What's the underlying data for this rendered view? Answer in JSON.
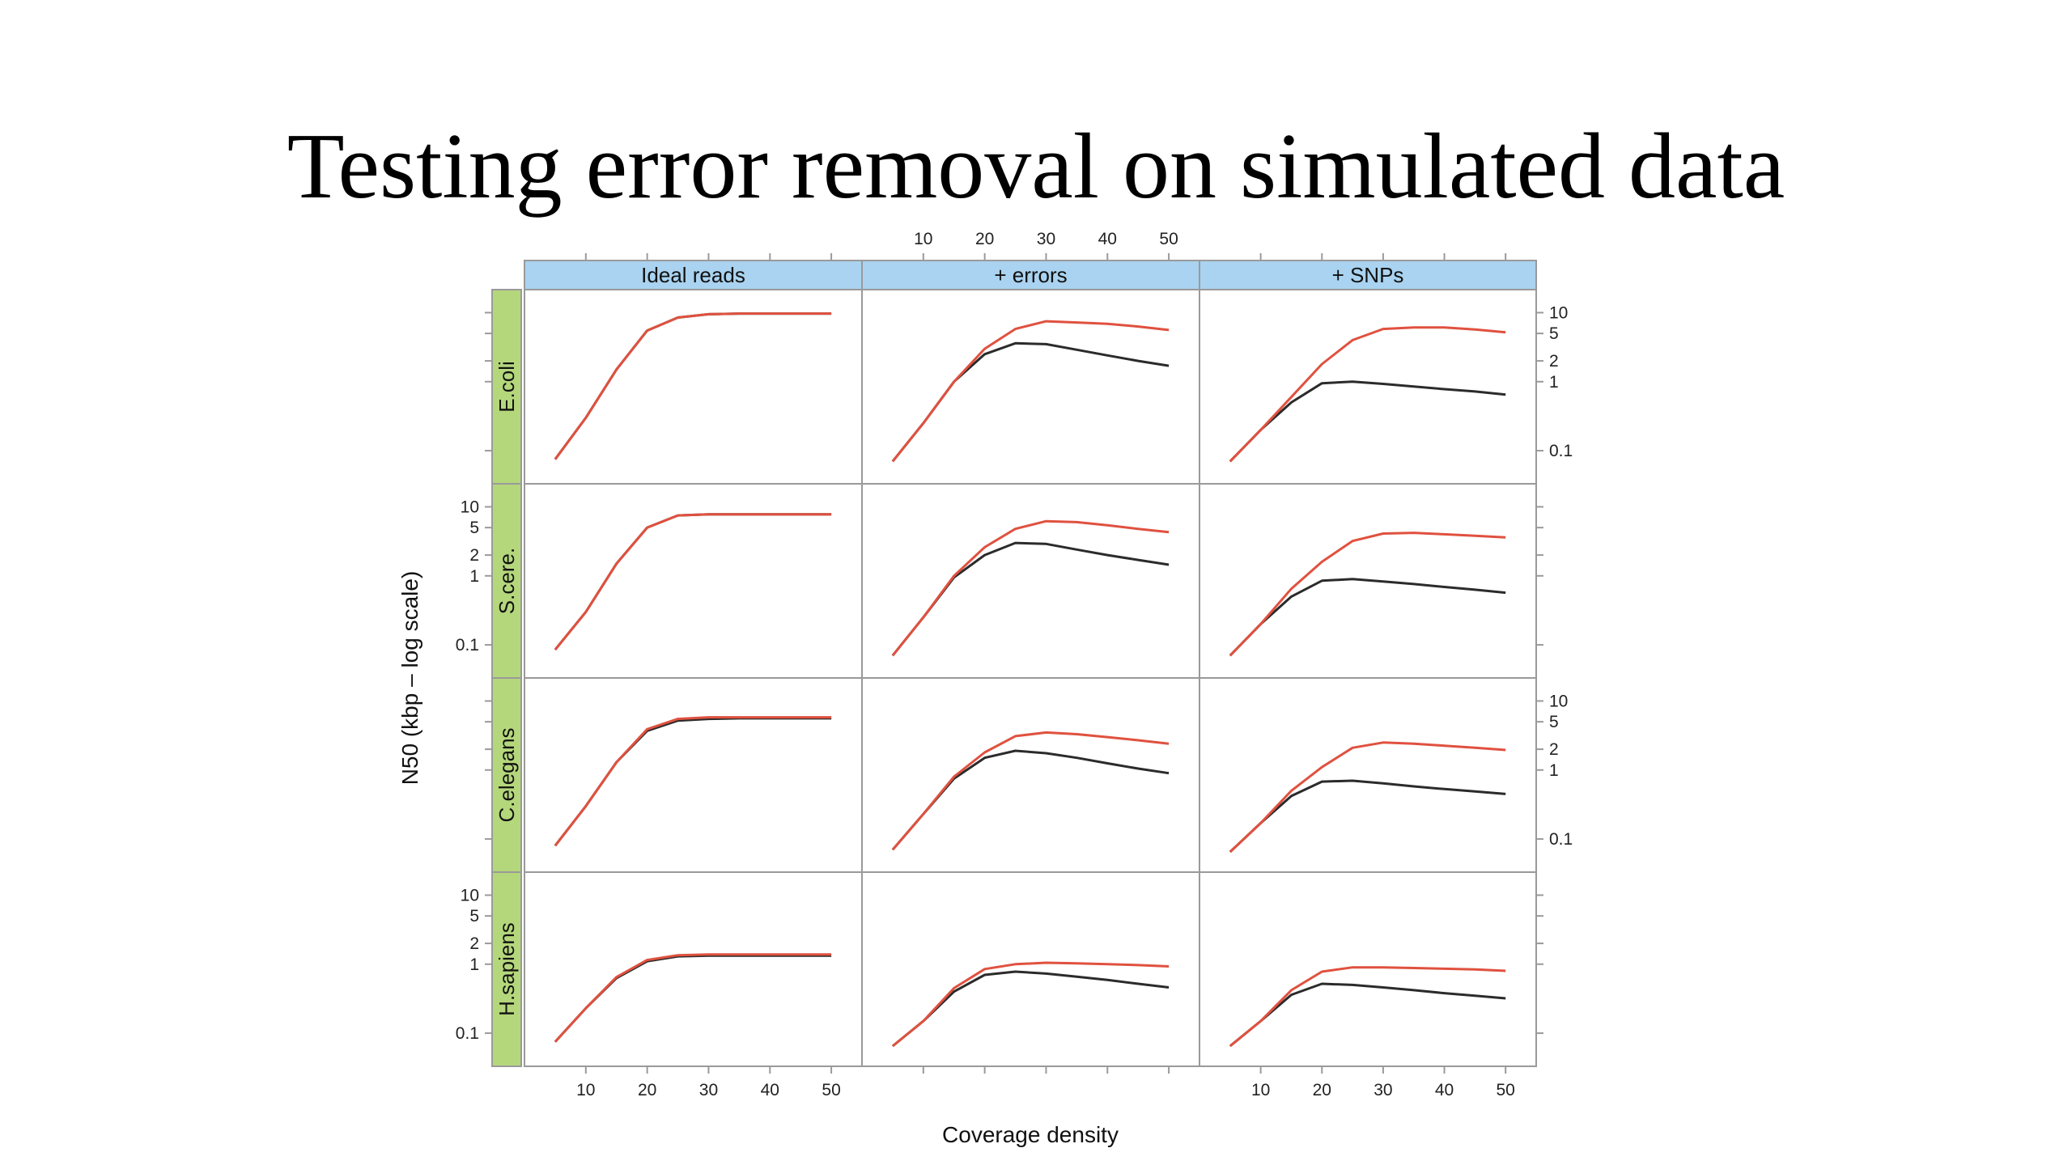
{
  "title": "Testing error removal on simulated data",
  "chart_data": {
    "type": "line",
    "xlabel": "Coverage density",
    "ylabel": "N50 (kbp – log scale)",
    "ylog": true,
    "xlim": [
      0,
      55
    ],
    "ylim": [
      0.06,
      14
    ],
    "x_ticks": [
      10,
      20,
      30,
      40,
      50
    ],
    "y_ticks": [
      0.1,
      1,
      2,
      5,
      10
    ],
    "x": [
      5,
      10,
      15,
      20,
      25,
      30,
      35,
      40,
      45,
      50
    ],
    "columns": [
      "Ideal reads",
      "+ errors",
      "+ SNPs"
    ],
    "rows": [
      "E.coli",
      "S.cere.",
      "C.elegans",
      "H.sapiens"
    ],
    "colors": {
      "red": "#e0513f",
      "black": "#2b2b2b",
      "column_strip": "#a9d3f0",
      "row_strip": "#b5d77c",
      "frame": "#9a9a9a"
    },
    "panels": [
      {
        "row": "E.coli",
        "column": "Ideal reads",
        "red": [
          0.075,
          0.3,
          1.5,
          5.5,
          8.5,
          9.5,
          9.7,
          9.7,
          9.7,
          9.7
        ],
        "black": [
          0.075,
          0.3,
          1.5,
          5.5,
          8.5,
          9.5,
          9.7,
          9.7,
          9.7,
          9.7
        ]
      },
      {
        "row": "E.coli",
        "column": "+ errors",
        "red": [
          0.07,
          0.25,
          1.0,
          3.0,
          5.8,
          7.5,
          7.2,
          6.9,
          6.3,
          5.6
        ],
        "black": [
          0.07,
          0.25,
          1.0,
          2.5,
          3.6,
          3.5,
          2.9,
          2.4,
          2.0,
          1.7
        ]
      },
      {
        "row": "E.coli",
        "column": "+ SNPs",
        "red": [
          0.07,
          0.2,
          0.6,
          1.8,
          4.0,
          5.8,
          6.1,
          6.1,
          5.7,
          5.2
        ],
        "black": [
          0.07,
          0.2,
          0.5,
          0.95,
          1.0,
          0.93,
          0.85,
          0.78,
          0.72,
          0.65
        ]
      },
      {
        "row": "S.cere.",
        "column": "Ideal reads",
        "red": [
          0.085,
          0.3,
          1.5,
          5.0,
          7.5,
          7.8,
          7.8,
          7.8,
          7.8,
          7.8
        ],
        "black": [
          0.085,
          0.3,
          1.5,
          5.0,
          7.5,
          7.8,
          7.8,
          7.8,
          7.8,
          7.8
        ]
      },
      {
        "row": "S.cere.",
        "column": "+ errors",
        "red": [
          0.07,
          0.25,
          1.0,
          2.6,
          4.8,
          6.2,
          6.0,
          5.4,
          4.8,
          4.3
        ],
        "black": [
          0.07,
          0.25,
          0.95,
          2.0,
          3.0,
          2.9,
          2.4,
          2.0,
          1.7,
          1.45
        ]
      },
      {
        "row": "S.cere.",
        "column": "+ SNPs",
        "red": [
          0.07,
          0.2,
          0.65,
          1.6,
          3.2,
          4.1,
          4.2,
          4.0,
          3.8,
          3.6
        ],
        "black": [
          0.07,
          0.2,
          0.5,
          0.85,
          0.9,
          0.83,
          0.76,
          0.69,
          0.63,
          0.57
        ]
      },
      {
        "row": "C.elegans",
        "column": "Ideal reads",
        "red": [
          0.08,
          0.3,
          1.3,
          3.9,
          5.5,
          5.8,
          5.8,
          5.8,
          5.8,
          5.8
        ],
        "black": [
          0.08,
          0.3,
          1.3,
          3.7,
          5.2,
          5.5,
          5.6,
          5.6,
          5.6,
          5.6
        ]
      },
      {
        "row": "C.elegans",
        "column": "+ errors",
        "red": [
          0.07,
          0.23,
          0.8,
          1.8,
          3.1,
          3.5,
          3.3,
          3.0,
          2.7,
          2.4
        ],
        "black": [
          0.07,
          0.23,
          0.75,
          1.5,
          1.9,
          1.75,
          1.5,
          1.25,
          1.05,
          0.9
        ]
      },
      {
        "row": "C.elegans",
        "column": "+ SNPs",
        "red": [
          0.065,
          0.17,
          0.5,
          1.1,
          2.1,
          2.5,
          2.4,
          2.25,
          2.1,
          1.95
        ],
        "black": [
          0.065,
          0.17,
          0.42,
          0.68,
          0.7,
          0.64,
          0.58,
          0.53,
          0.49,
          0.45
        ]
      },
      {
        "row": "H.sapiens",
        "column": "Ideal reads",
        "red": [
          0.075,
          0.23,
          0.65,
          1.15,
          1.35,
          1.38,
          1.38,
          1.38,
          1.38,
          1.38
        ],
        "black": [
          0.075,
          0.23,
          0.63,
          1.1,
          1.3,
          1.33,
          1.33,
          1.33,
          1.33,
          1.33
        ]
      },
      {
        "row": "H.sapiens",
        "column": "+ errors",
        "red": [
          0.065,
          0.15,
          0.45,
          0.85,
          1.0,
          1.05,
          1.03,
          1.0,
          0.97,
          0.93
        ],
        "black": [
          0.065,
          0.15,
          0.4,
          0.7,
          0.78,
          0.73,
          0.66,
          0.59,
          0.52,
          0.46
        ]
      },
      {
        "row": "H.sapiens",
        "column": "+ SNPs",
        "red": [
          0.065,
          0.15,
          0.42,
          0.78,
          0.9,
          0.9,
          0.88,
          0.86,
          0.84,
          0.8
        ],
        "black": [
          0.065,
          0.15,
          0.36,
          0.52,
          0.5,
          0.46,
          0.42,
          0.38,
          0.35,
          0.32
        ]
      }
    ]
  }
}
